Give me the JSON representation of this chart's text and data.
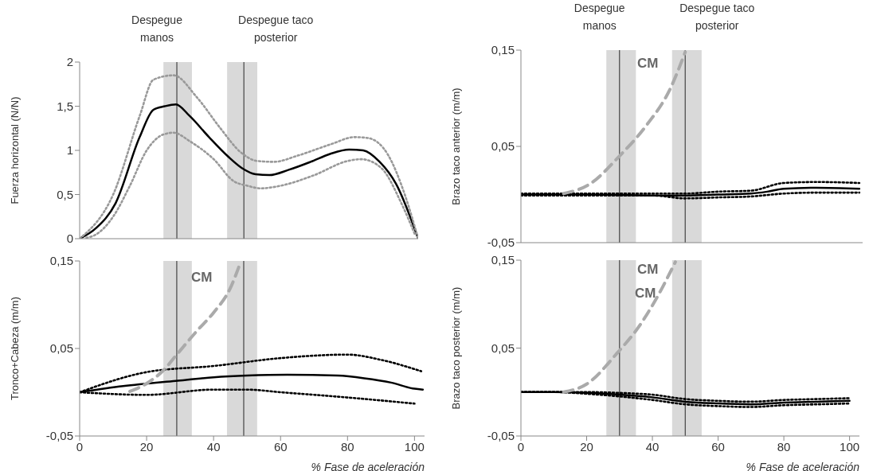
{
  "chart_data": [
    {
      "type": "line",
      "ylabel": "Fuerza horizontal  (N/N)",
      "xlim": [
        0,
        101
      ],
      "xticks": [
        0,
        20,
        40,
        60,
        80,
        100
      ],
      "ylim": [
        0,
        2
      ],
      "yticks": [
        0,
        {
          "value": 0.5,
          "label": "0,5"
        },
        1,
        {
          "value": 1.5,
          "label": "1,5"
        },
        2
      ],
      "tick_labels": "y",
      "series": [
        {
          "color": "#000000",
          "line_style": "solid",
          "x": [
            0,
            4.9,
            10.7,
            17.9,
            22,
            25.4,
            28.7,
            32.8,
            38.6,
            44.3,
            48.4,
            52.5,
            56.6,
            62.4,
            68.9,
            74.7,
            80.4,
            84.6,
            89.5,
            94.4,
            101
          ],
          "values": [
            0,
            0.12,
            0.4,
            1.15,
            1.46,
            1.5,
            1.52,
            1.39,
            1.15,
            0.93,
            0.8,
            0.73,
            0.72,
            0.78,
            0.87,
            0.96,
            1.01,
            1,
            0.87,
            0.62,
            0
          ]
        },
        {
          "color": "#999999",
          "line_style": "dotted",
          "x": [
            0,
            10,
            18,
            22,
            28,
            35,
            42,
            48,
            53,
            58,
            65,
            75,
            82,
            86,
            92,
            97,
            101
          ],
          "values": [
            0,
            0.5,
            1.4,
            1.8,
            1.85,
            1.6,
            1.25,
            0.98,
            0.88,
            0.87,
            0.94,
            1.07,
            1.15,
            1.14,
            0.95,
            0.5,
            0
          ]
        },
        {
          "color": "#999999",
          "line_style": "dotted",
          "x": [
            2,
            5,
            10,
            15,
            20,
            25,
            28,
            33,
            40,
            46,
            50,
            54,
            60,
            70,
            80,
            84,
            90,
            96,
            100
          ],
          "values": [
            0.01,
            0.05,
            0.25,
            0.6,
            1,
            1.18,
            1.2,
            1.1,
            0.9,
            0.65,
            0.6,
            0.57,
            0.6,
            0.72,
            0.88,
            0.9,
            0.8,
            0.4,
            0.05
          ]
        }
      ],
      "bands": [
        {
          "axis": "x",
          "from": 25,
          "to": 33.5,
          "color": "#d9d9d9"
        },
        {
          "axis": "x",
          "from": 44,
          "to": 53,
          "color": "#d9d9d9"
        }
      ],
      "ref_lines": [
        {
          "axis": "x",
          "value": 29,
          "label": "Despegue manos",
          "color": "#444444"
        },
        {
          "axis": "x",
          "value": 49,
          "label": "Despegue taco posterior",
          "color": "#444444"
        }
      ]
    },
    {
      "type": "line",
      "ylabel": "Tronco+Cabeza (m/m)",
      "xlabel": "% Fase de aceleración",
      "xlim": [
        0,
        103
      ],
      "xticks": [
        0,
        20,
        40,
        60,
        80,
        100
      ],
      "ylim": [
        -0.05,
        0.15
      ],
      "yticks": [
        {
          "value": -0.05,
          "label": "-0,05"
        },
        {
          "value": 0.05,
          "label": "0,05"
        },
        {
          "value": 0.15,
          "label": "0,15"
        }
      ],
      "series": [
        {
          "color": "#000000",
          "line_style": "solid",
          "x": [
            0,
            13,
            28.7,
            40,
            50,
            62,
            77,
            85,
            93,
            100,
            102.5
          ],
          "values": [
            0,
            0.007,
            0.013,
            0.017,
            0.019,
            0.02,
            0.019,
            0.016,
            0.011,
            0.004,
            0.003
          ]
        },
        {
          "color": "#000000",
          "line_style": "dotted",
          "x": [
            0,
            20,
            40,
            60,
            80,
            90,
            102
          ],
          "values": [
            0,
            0.023,
            0.03,
            0.039,
            0.043,
            0.037,
            0.024
          ]
        },
        {
          "color": "#000000",
          "line_style": "dotted",
          "x": [
            0,
            20,
            40,
            50,
            60,
            80,
            100
          ],
          "values": [
            0,
            -0.003,
            0.003,
            0.003,
            0,
            -0.006,
            -0.013
          ]
        },
        {
          "color": "#aaaaaa",
          "line_style": "dashed",
          "x": [
            15,
            20,
            25,
            29,
            35,
            40,
            45,
            48
          ],
          "values": [
            0.001,
            0.01,
            0.025,
            0.043,
            0.07,
            0.091,
            0.119,
            0.148
          ]
        }
      ],
      "bands": [
        {
          "axis": "x",
          "from": 25,
          "to": 33.5,
          "color": "#d9d9d9"
        },
        {
          "axis": "x",
          "from": 44,
          "to": 53,
          "color": "#d9d9d9"
        }
      ],
      "ref_lines": [
        {
          "axis": "x",
          "value": 29,
          "color": "#444444"
        },
        {
          "axis": "x",
          "value": 49,
          "color": "#444444"
        }
      ],
      "annotations": [
        "CM"
      ]
    },
    {
      "type": "line",
      "ylabel": "Brazo taco anterior (m/m)",
      "xlim": [
        0,
        104
      ],
      "xticks": [
        0,
        20,
        40,
        60,
        80,
        100
      ],
      "ylim": [
        -0.05,
        0.15
      ],
      "yticks": [
        {
          "value": -0.05,
          "label": "-0,05"
        },
        {
          "value": 0.05,
          "label": "0,05"
        },
        {
          "value": 0.15,
          "label": "0,15"
        }
      ],
      "tick_labels": "y",
      "series": [
        {
          "color": "#000000",
          "line_style": "solid",
          "x": [
            0,
            20,
            40,
            50,
            60,
            70,
            75,
            80,
            90,
            103
          ],
          "values": [
            0,
            0,
            -0.001,
            -0.001,
            0,
            0.001,
            0.003,
            0.006,
            0.007,
            0.006
          ]
        },
        {
          "color": "#000000",
          "line_style": "dotted",
          "x": [
            0,
            20,
            40,
            50,
            60,
            70,
            80,
            90,
            103
          ],
          "values": [
            0.001,
            0.001,
            0.001,
            0.001,
            0.003,
            0.004,
            0.012,
            0.013,
            0.012
          ]
        },
        {
          "color": "#000000",
          "line_style": "dotted",
          "x": [
            0,
            20,
            40,
            50,
            60,
            70,
            80,
            90,
            103
          ],
          "values": [
            -0.001,
            -0.001,
            -0.001,
            -0.004,
            -0.003,
            -0.002,
            0.001,
            0.002,
            0.002
          ]
        },
        {
          "color": "#aaaaaa",
          "line_style": "dashed",
          "x": [
            13,
            21,
            30,
            38,
            45.6,
            50
          ],
          "values": [
            0.001,
            0.011,
            0.04,
            0.071,
            0.111,
            0.148
          ]
        }
      ],
      "bands": [
        {
          "axis": "x",
          "from": 26,
          "to": 35,
          "color": "#d9d9d9"
        },
        {
          "axis": "x",
          "from": 46,
          "to": 55,
          "color": "#d9d9d9"
        }
      ],
      "ref_lines": [
        {
          "axis": "x",
          "value": 30,
          "label": "Despegue manos",
          "color": "#444444"
        },
        {
          "axis": "x",
          "value": 50,
          "label": "Despegue taco posterior",
          "color": "#444444"
        }
      ],
      "annotations": [
        "CM"
      ]
    },
    {
      "type": "line",
      "ylabel": "Brazo taco posterior (m/m)",
      "xlabel": "% Fase de aceleración",
      "xlim": [
        0,
        103
      ],
      "xticks": [
        0,
        20,
        40,
        60,
        80,
        100
      ],
      "ylim": [
        -0.05,
        0.15
      ],
      "yticks": [
        {
          "value": -0.05,
          "label": "-0,05"
        },
        {
          "value": 0.05,
          "label": "0,05"
        },
        {
          "value": 0.15,
          "label": "0,15"
        }
      ],
      "series": [
        {
          "color": "#000000",
          "line_style": "solid",
          "x": [
            0,
            10,
            20,
            30,
            40,
            50,
            60,
            70,
            80,
            90,
            100
          ],
          "values": [
            0,
            0,
            -0.001,
            -0.003,
            -0.006,
            -0.011,
            -0.013,
            -0.014,
            -0.012,
            -0.011,
            -0.01
          ]
        },
        {
          "color": "#000000",
          "line_style": "dotted",
          "x": [
            0,
            10,
            20,
            30,
            40,
            50,
            60,
            70,
            80,
            90,
            100
          ],
          "values": [
            0,
            0,
            0,
            -0.001,
            -0.003,
            -0.008,
            -0.01,
            -0.011,
            -0.009,
            -0.008,
            -0.007
          ]
        },
        {
          "color": "#000000",
          "line_style": "dotted",
          "x": [
            0,
            10,
            20,
            30,
            40,
            50,
            60,
            70,
            80,
            90,
            100
          ],
          "values": [
            0,
            0,
            -0.002,
            -0.005,
            -0.009,
            -0.014,
            -0.016,
            -0.017,
            -0.015,
            -0.014,
            -0.013
          ]
        },
        {
          "color": "#aaaaaa",
          "line_style": "dashed",
          "x": [
            13,
            20,
            29.2,
            36,
            41,
            47
          ],
          "values": [
            0,
            0.009,
            0.044,
            0.075,
            0.105,
            0.148
          ]
        }
      ],
      "bands": [
        {
          "axis": "x",
          "from": 26,
          "to": 35,
          "color": "#d9d9d9"
        },
        {
          "axis": "x",
          "from": 46,
          "to": 55,
          "color": "#d9d9d9"
        }
      ],
      "ref_lines": [
        {
          "axis": "x",
          "value": 30,
          "color": "#444444"
        },
        {
          "axis": "x",
          "value": 50,
          "color": "#444444"
        }
      ],
      "annotations": [
        "CM",
        "CM"
      ]
    }
  ]
}
